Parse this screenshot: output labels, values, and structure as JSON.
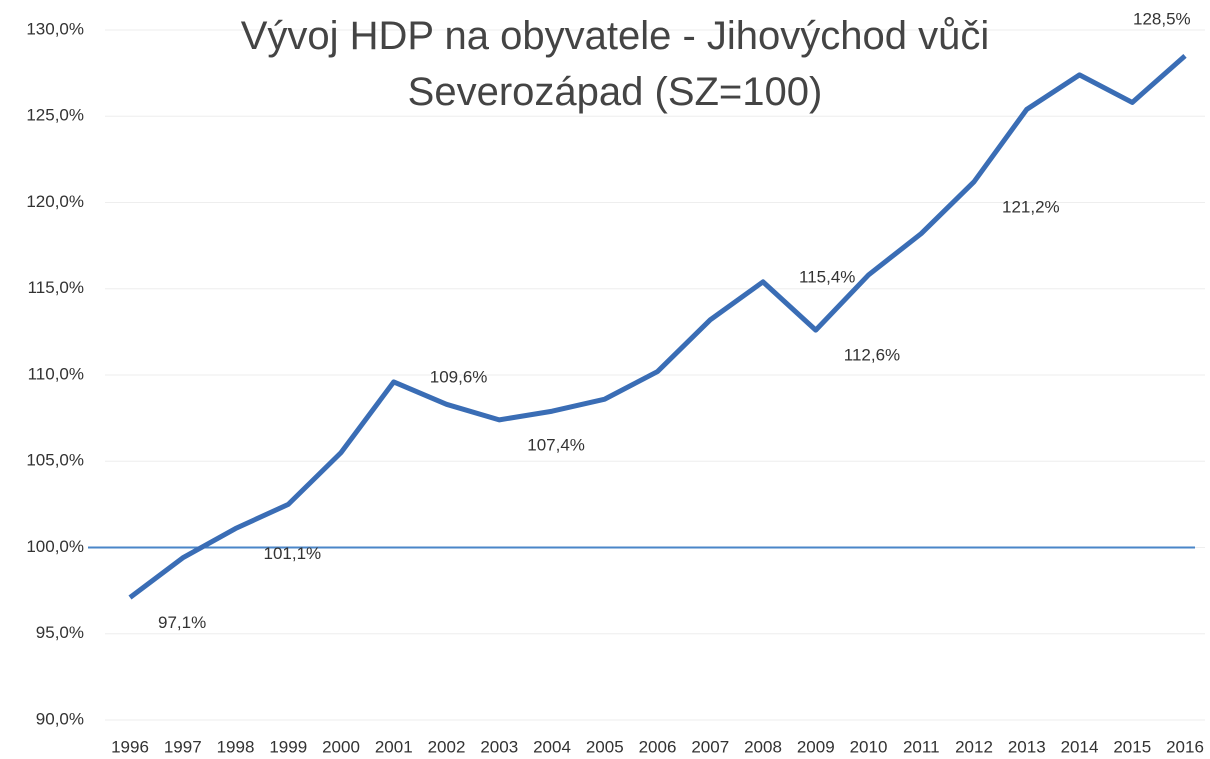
{
  "chart_data": {
    "type": "line",
    "title": "Vývoj HDP na obyvatele - Jihovýchod vůči Severozápad (SZ=100)",
    "categories": [
      "1996",
      "1997",
      "1998",
      "1999",
      "2000",
      "2001",
      "2002",
      "2003",
      "2004",
      "2005",
      "2006",
      "2007",
      "2008",
      "2009",
      "2010",
      "2011",
      "2012",
      "2013",
      "2014",
      "2015",
      "2016"
    ],
    "series": [
      {
        "color": "#3a6db5",
        "values": [
          97.1,
          99.4,
          101.1,
          102.5,
          105.5,
          109.6,
          108.3,
          107.4,
          107.9,
          108.6,
          110.2,
          113.2,
          115.4,
          112.6,
          115.8,
          118.2,
          121.2,
          125.4,
          127.4,
          125.8,
          128.5
        ],
        "value_labels": [
          "97,1%",
          null,
          "101,1%",
          null,
          null,
          "109,6%",
          null,
          "107,4%",
          null,
          null,
          null,
          null,
          "115,4%",
          "112,6%",
          null,
          null,
          "121,2%",
          null,
          null,
          null,
          "128,5%"
        ]
      }
    ],
    "reference_line": {
      "value": 100,
      "color": "#4a86c8"
    },
    "ylim": [
      90,
      130
    ],
    "yticks": [
      {
        "value": 90,
        "label": "90,0%"
      },
      {
        "value": 95,
        "label": "95,0%"
      },
      {
        "value": 100,
        "label": "100,0%"
      },
      {
        "value": 105,
        "label": "105,0%"
      },
      {
        "value": 110,
        "label": "110,0%"
      },
      {
        "value": 115,
        "label": "115,0%"
      },
      {
        "value": 120,
        "label": "120,0%"
      },
      {
        "value": 125,
        "label": "125,0%"
      },
      {
        "value": 130,
        "label": "130,0%"
      }
    ],
    "grid": true
  }
}
